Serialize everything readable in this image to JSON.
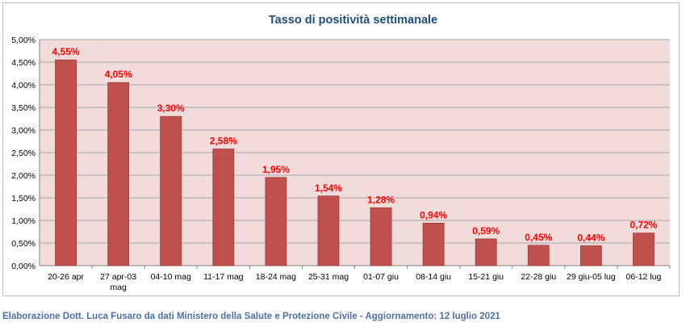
{
  "chart_data": {
    "type": "bar",
    "title": "Tasso di positività settimanale",
    "categories": [
      "20-26 apr",
      "27 apr-03 mag",
      "04-10 mag",
      "11-17 mag",
      "18-24 mag",
      "25-31 mag",
      "01-07 giu",
      "08-14 giu",
      "15-21 giu",
      "22-28 giu",
      "29 giu-05 lug",
      "06-12 lug"
    ],
    "category_lines": [
      [
        "20-26 apr"
      ],
      [
        "27 apr-03",
        "mag"
      ],
      [
        "04-10 mag"
      ],
      [
        "11-17 mag"
      ],
      [
        "18-24 mag"
      ],
      [
        "25-31 mag"
      ],
      [
        "01-07 giu"
      ],
      [
        "08-14 giu"
      ],
      [
        "15-21 giu"
      ],
      [
        "22-28 giu"
      ],
      [
        "29 giu-05 lug"
      ],
      [
        "06-12 lug"
      ]
    ],
    "values": [
      4.55,
      4.05,
      3.3,
      2.58,
      1.95,
      1.54,
      1.28,
      0.94,
      0.59,
      0.45,
      0.44,
      0.72
    ],
    "data_labels": [
      "4,55%",
      "4,05%",
      "3,30%",
      "2,58%",
      "1,95%",
      "1,54%",
      "1,28%",
      "0,94%",
      "0,59%",
      "0,45%",
      "0,44%",
      "0,72%"
    ],
    "yticks": [
      "0,00%",
      "0,50%",
      "1,00%",
      "1,50%",
      "2,00%",
      "2,50%",
      "3,00%",
      "3,50%",
      "4,00%",
      "4,50%",
      "5,00%"
    ],
    "ylim": [
      0,
      5
    ],
    "xlabel": "",
    "ylabel": "",
    "grid": true,
    "legend": "none",
    "colors": {
      "bar": "#c0504d",
      "bar_edge": "#9c3d3a",
      "plot_background": "#f2dcdb",
      "gridline": "#a6a6a6",
      "data_label": "#ff0000",
      "title": "#1f4e79",
      "footer": "#4f6fa8"
    }
  },
  "footer": "Elaborazione Dott. Luca Fusaro da dati Ministero della Salute e Protezione Civile - Aggiornamento: 12 luglio 2021"
}
